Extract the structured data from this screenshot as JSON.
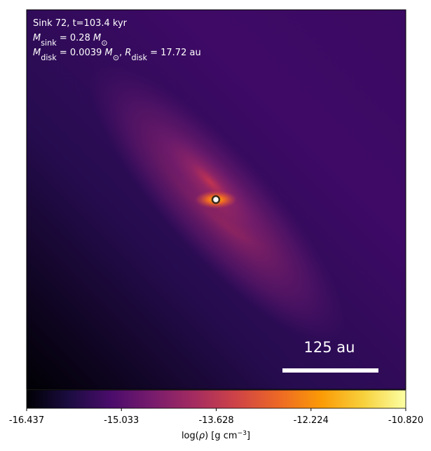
{
  "chart_data": {
    "type": "image",
    "annotations": [
      [
        {
          "t": "Sink 72, t=103.4 kyr",
          "style": "normal"
        }
      ],
      [
        {
          "t": "M",
          "style": "italic"
        },
        {
          "t": "sink",
          "style": "sub"
        },
        {
          "t": " = 0.28 ",
          "style": "normal"
        },
        {
          "t": "M",
          "style": "italic"
        },
        {
          "t": "⊙",
          "style": "sub"
        }
      ],
      [
        {
          "t": "M",
          "style": "italic"
        },
        {
          "t": "disk",
          "style": "sub"
        },
        {
          "t": " = 0.0039 ",
          "style": "normal"
        },
        {
          "t": "M",
          "style": "italic"
        },
        {
          "t": "⊙",
          "style": "sub"
        },
        {
          "t": ", ",
          "style": "normal"
        },
        {
          "t": "R",
          "style": "italic"
        },
        {
          "t": "disk",
          "style": "sub"
        },
        {
          "t": " = 17.72 au",
          "style": "normal"
        }
      ]
    ],
    "scale_bar": {
      "label": "125 au"
    },
    "colorbar": {
      "label": [
        {
          "t": "log(",
          "style": "normal"
        },
        {
          "t": "ρ",
          "style": "italic"
        },
        {
          "t": ") [g cm",
          "style": "normal"
        },
        {
          "t": "−3",
          "style": "sup"
        },
        {
          "t": "]",
          "style": "normal"
        }
      ],
      "clim": [
        -16.437,
        -10.82
      ],
      "ticks": [
        -16.437,
        -15.033,
        -13.628,
        -12.224,
        {
          "value": -10.82,
          "label": "-10.820"
        }
      ],
      "colormap": [
        "#000004",
        "#1b0c41",
        "#4a0c6b",
        "#781c6d",
        "#a52c60",
        "#cf4446",
        "#ed6925",
        "#fb9b06",
        "#f7d13d",
        "#fcffa4"
      ]
    }
  }
}
